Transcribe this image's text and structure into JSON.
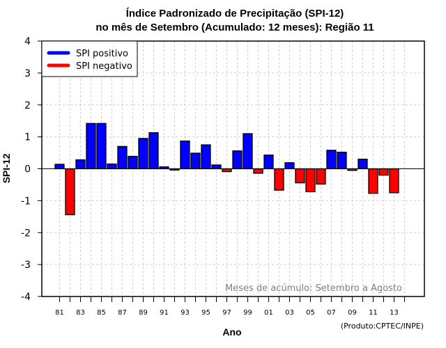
{
  "chart_data": {
    "type": "bar",
    "title": [
      "Índice Padronizado de Precipitação (SPI-12)",
      "no mês de Setembro (Acumulado: 12 meses): Região 11"
    ],
    "xlabel": "Ano",
    "ylabel": "SPI-12",
    "ylim": [
      -4,
      4
    ],
    "yticks": [
      "-4",
      "-3",
      "-2",
      "-1",
      "0",
      "1",
      "2",
      "3",
      "4"
    ],
    "grid": true,
    "categories": [
      "81",
      "82",
      "83",
      "84",
      "85",
      "86",
      "87",
      "88",
      "89",
      "90",
      "91",
      "92",
      "93",
      "94",
      "95",
      "96",
      "97",
      "98",
      "99",
      "00",
      "01",
      "02",
      "03",
      "04",
      "05",
      "06",
      "07",
      "08",
      "09",
      "10",
      "11",
      "12",
      "13",
      "14"
    ],
    "xtick_labels": [
      "81",
      "83",
      "85",
      "87",
      "89",
      "91",
      "93",
      "95",
      "97",
      "99",
      "01",
      "03",
      "05",
      "07",
      "09",
      "11",
      "13"
    ],
    "values": [
      0.14,
      -1.44,
      0.28,
      1.42,
      1.42,
      0.15,
      0.7,
      0.39,
      0.95,
      1.13,
      0.06,
      -0.04,
      0.87,
      0.49,
      0.75,
      0.12,
      -0.09,
      0.56,
      1.1,
      -0.14,
      0.43,
      -0.67,
      0.19,
      -0.44,
      -0.72,
      -0.48,
      0.58,
      0.52,
      -0.05,
      0.3,
      -0.77,
      -0.2,
      -0.75,
      null
    ],
    "colors": {
      "positive": "#0000ff",
      "negative": "#ff0000"
    },
    "legend": {
      "position": "top-left",
      "entries": [
        {
          "label": "SPI positivo",
          "color": "#0000ff"
        },
        {
          "label": "SPI negativo",
          "color": "#ff0000"
        }
      ]
    },
    "annotation": "Meses de acúmulo: Setembro a Agosto",
    "credit": "(Produto:CPTEC/INPE)"
  }
}
